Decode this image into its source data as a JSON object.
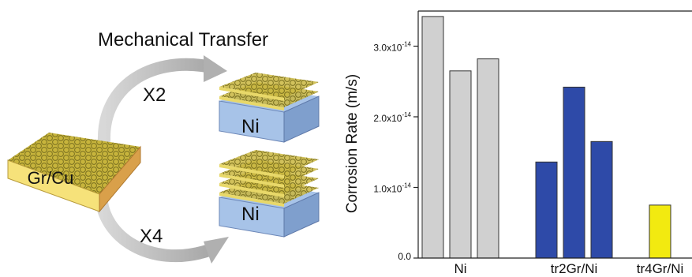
{
  "schematic": {
    "title": "Mechanical Transfer",
    "source_label": "Gr/Cu",
    "transfer_top_label": "X2",
    "transfer_bottom_label": "X4",
    "target_top_label": "Ni",
    "target_bottom_label": "Ni",
    "colors": {
      "copper_face": "#f6e27a",
      "copper_side": "#d9a04a",
      "graphene": "#c9b640",
      "nickel_face": "#a7c3e8",
      "nickel_side": "#7f9fcd",
      "arrow": "#c2c2c2"
    }
  },
  "chart_data": {
    "type": "bar",
    "ylabel": "Corrosion Rate (m/s)",
    "ylim": [
      0,
      3.5e-14
    ],
    "y_ticks": [
      {
        "value": 0.0,
        "label": "0.0"
      },
      {
        "value": 1e-14,
        "label_base": "1.0x10",
        "label_exp": "-14"
      },
      {
        "value": 2e-14,
        "label_base": "2.0x10",
        "label_exp": "-14"
      },
      {
        "value": 3e-14,
        "label_base": "3.0x10",
        "label_exp": "-14"
      }
    ],
    "groups": [
      {
        "label": "Ni",
        "color": "#d0d0d0",
        "values": [
          3.42e-14,
          2.65e-14,
          2.82e-14
        ]
      },
      {
        "label": "tr2Gr/Ni",
        "color": "#2e4aa8",
        "values": [
          1.36e-14,
          2.42e-14,
          1.65e-14
        ]
      },
      {
        "label": "tr4Gr/Ni",
        "color": "#f2ea10",
        "values": [
          7.5e-15
        ]
      }
    ],
    "grid": false
  }
}
